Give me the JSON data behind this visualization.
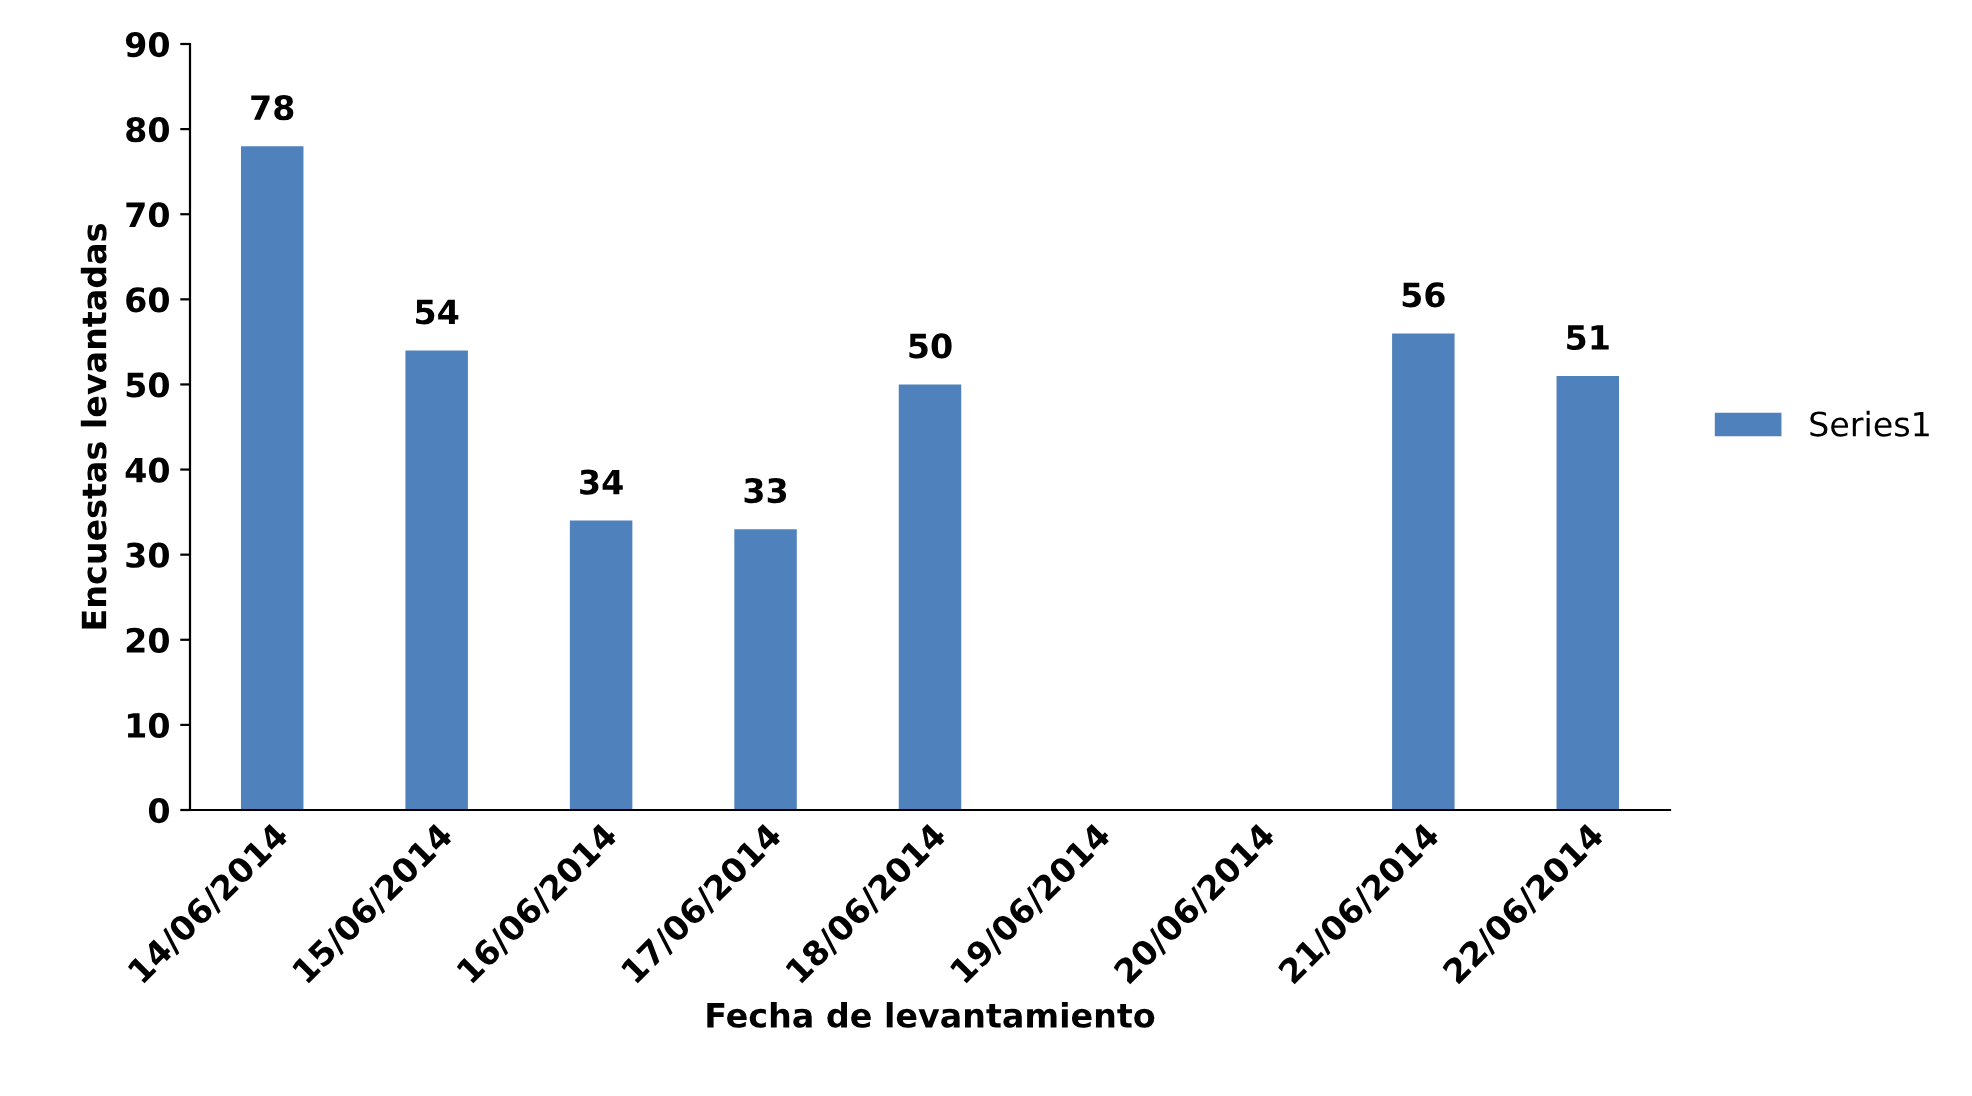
{
  "chart_data": {
    "type": "bar",
    "xlabel": "Fecha de levantamiento",
    "ylabel": "Encuestas levantadas",
    "categories": [
      "14/06/2014",
      "15/06/2014",
      "16/06/2014",
      "17/06/2014",
      "18/06/2014",
      "19/06/2014",
      "20/06/2014",
      "21/06/2014",
      "22/06/2014"
    ],
    "series": [
      {
        "name": "Series1",
        "color": "#4f81bd",
        "values": [
          78,
          54,
          34,
          33,
          50,
          null,
          null,
          56,
          51
        ]
      }
    ],
    "ylim": [
      0,
      90
    ],
    "yticks": [
      0,
      10,
      20,
      30,
      40,
      50,
      60,
      70,
      80,
      90
    ],
    "grid": false,
    "legend": "right",
    "data_labels": true
  }
}
